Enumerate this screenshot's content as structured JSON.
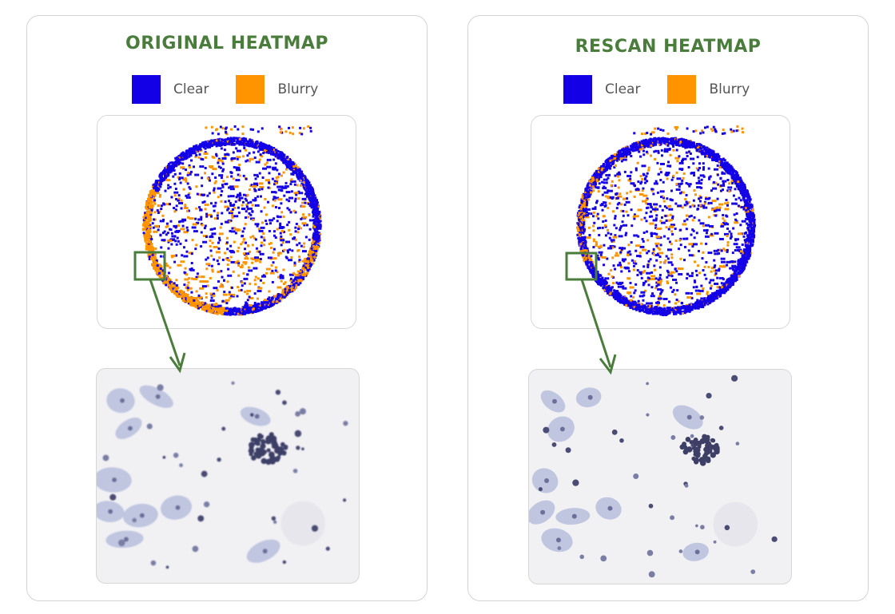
{
  "colors": {
    "clear": "#1400e6",
    "blurry": "#ff9300",
    "title": "#4a7d3c",
    "callout": "#4a7d3c"
  },
  "panels": [
    {
      "id": "original",
      "title": "ORIGINAL HEATMAP",
      "legend": [
        {
          "label": "Clear",
          "color": "#1400e6"
        },
        {
          "label": "Blurry",
          "color": "#ff9300"
        }
      ],
      "blurry_region": "lower-left rim",
      "zoom_icon": "microscope-cell-image"
    },
    {
      "id": "rescan",
      "title": "RESCAN HEATMAP",
      "legend": [
        {
          "label": "Clear",
          "color": "#1400e6"
        },
        {
          "label": "Blurry",
          "color": "#ff9300"
        }
      ],
      "blurry_region": "sparse",
      "zoom_icon": "microscope-cell-image"
    }
  ]
}
